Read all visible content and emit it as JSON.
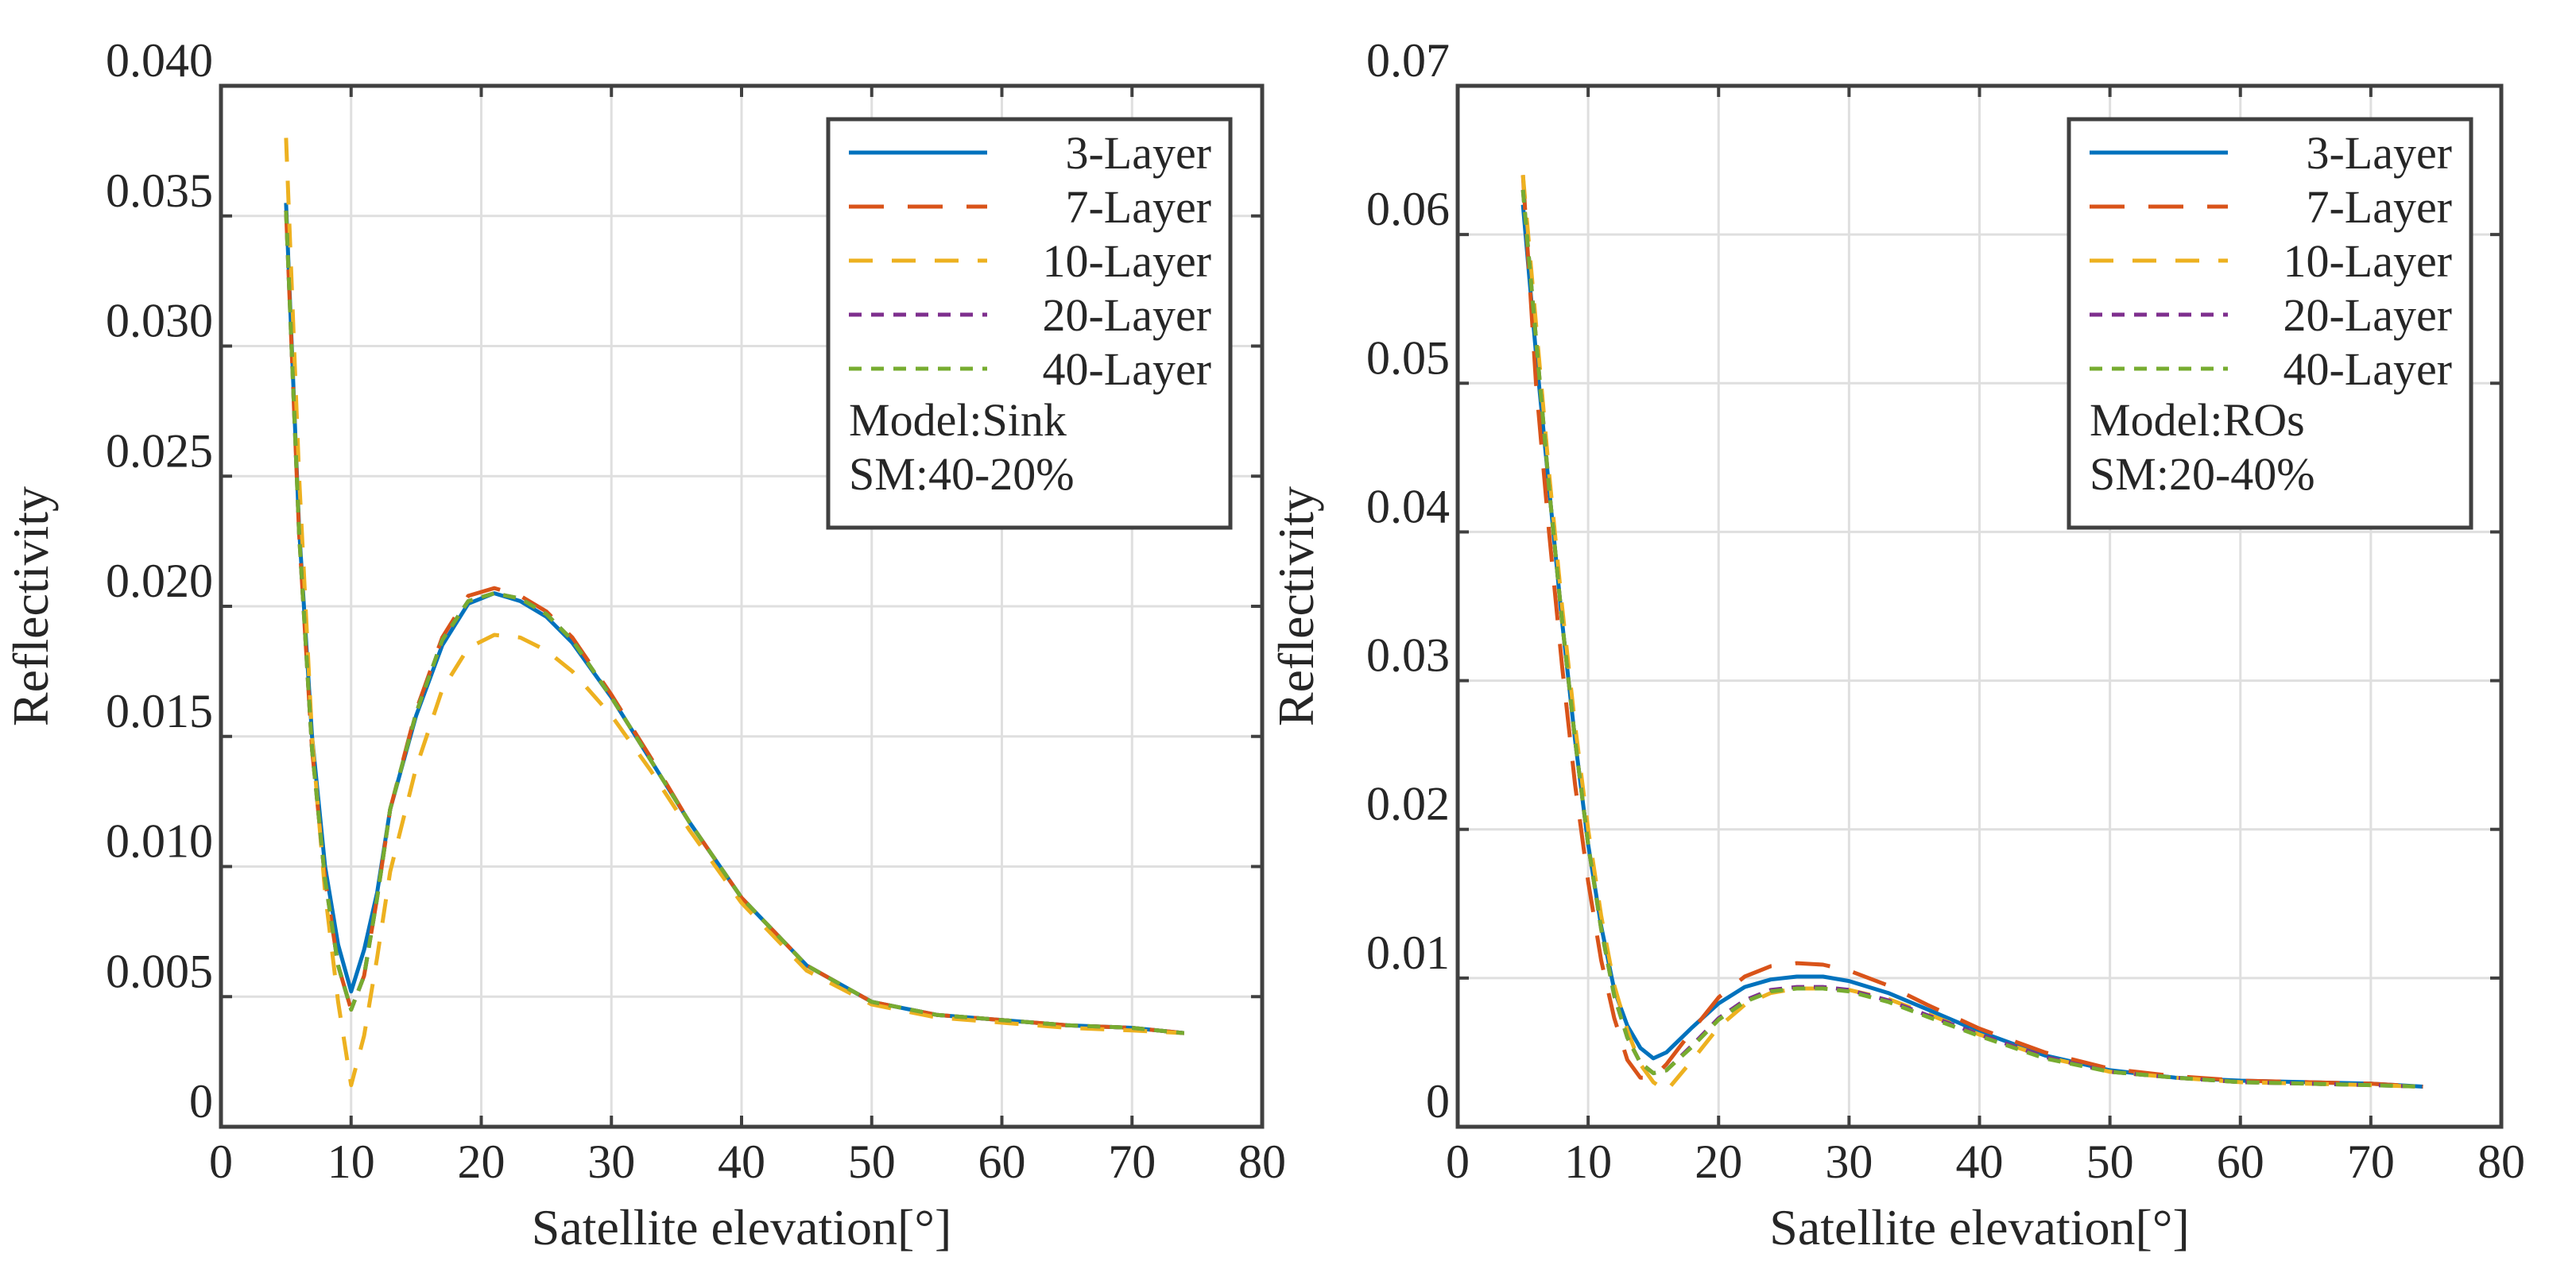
{
  "chart_data": [
    {
      "type": "line",
      "xlabel": "Satellite elevation[°]",
      "ylabel": "Reflectivity",
      "xlim": [
        0,
        80
      ],
      "ylim": [
        0,
        0.04
      ],
      "grid": true,
      "legend_position": "top-right",
      "xticks": [
        "0",
        "10",
        "20",
        "30",
        "40",
        "50",
        "60",
        "70",
        "80"
      ],
      "xtick_values": [
        0,
        10,
        20,
        30,
        40,
        50,
        60,
        70,
        80
      ],
      "yticks": [
        "0",
        "0.005",
        "0.010",
        "0.015",
        "0.020",
        "0.025",
        "0.030",
        "0.035",
        "0.040"
      ],
      "ytick_values": [
        0,
        0.005,
        0.01,
        0.015,
        0.02,
        0.025,
        0.03,
        0.035,
        0.04
      ],
      "annotations": [
        "Model:Sink",
        "SM:40-20%"
      ],
      "series": [
        {
          "name": "3-Layer",
          "color": "#0072BD",
          "dash": "solid",
          "x": [
            5,
            6,
            7,
            8,
            9,
            10,
            11,
            12,
            13,
            15,
            17,
            19,
            21,
            23,
            25,
            27,
            30,
            33,
            36,
            40,
            45,
            50,
            55,
            60,
            65,
            70,
            74
          ],
          "y": [
            0.0355,
            0.023,
            0.015,
            0.01,
            0.007,
            0.0052,
            0.0068,
            0.009,
            0.0122,
            0.0158,
            0.0185,
            0.0201,
            0.0205,
            0.0202,
            0.0196,
            0.0186,
            0.0165,
            0.0141,
            0.0117,
            0.0088,
            0.0062,
            0.0048,
            0.0043,
            0.0041,
            0.0039,
            0.0038,
            0.0036
          ]
        },
        {
          "name": "7-Layer",
          "color": "#D95319",
          "dash": "long",
          "x": [
            5,
            6,
            7,
            8,
            9,
            10,
            11,
            12,
            13,
            15,
            17,
            19,
            21,
            23,
            25,
            27,
            30,
            33,
            36,
            40,
            45,
            50,
            55,
            60,
            65,
            70,
            74
          ],
          "y": [
            0.0352,
            0.0228,
            0.0145,
            0.0095,
            0.0062,
            0.0045,
            0.0058,
            0.0088,
            0.0122,
            0.016,
            0.0188,
            0.0204,
            0.0207,
            0.0204,
            0.0198,
            0.0188,
            0.0166,
            0.0142,
            0.0117,
            0.0088,
            0.0062,
            0.0048,
            0.0043,
            0.0041,
            0.0039,
            0.0038,
            0.0036
          ]
        },
        {
          "name": "10-Layer",
          "color": "#EDB120",
          "dash": "medium",
          "x": [
            5,
            6,
            7,
            8,
            9,
            10,
            11,
            12,
            13,
            15,
            17,
            19,
            21,
            23,
            25,
            27,
            30,
            33,
            36,
            40,
            45,
            50,
            55,
            60,
            65,
            70,
            74
          ],
          "y": [
            0.038,
            0.025,
            0.015,
            0.009,
            0.0048,
            0.0016,
            0.0035,
            0.0065,
            0.0098,
            0.0138,
            0.0168,
            0.0184,
            0.0189,
            0.0188,
            0.0183,
            0.0175,
            0.0158,
            0.0137,
            0.0114,
            0.0086,
            0.006,
            0.0047,
            0.0042,
            0.004,
            0.0038,
            0.0037,
            0.0036
          ]
        },
        {
          "name": "20-Layer",
          "color": "#7E2F8E",
          "dash": "short",
          "x": [
            5,
            6,
            7,
            8,
            9,
            10,
            11,
            12,
            13,
            15,
            17,
            19,
            21,
            23,
            25,
            27,
            30,
            33,
            36,
            40,
            45,
            50,
            55,
            60,
            65,
            70,
            74
          ],
          "y": [
            0.0352,
            0.0228,
            0.0145,
            0.0095,
            0.0062,
            0.0045,
            0.0058,
            0.0088,
            0.0122,
            0.0159,
            0.0187,
            0.0202,
            0.0205,
            0.0203,
            0.0197,
            0.0187,
            0.0165,
            0.0141,
            0.0117,
            0.0088,
            0.0062,
            0.0048,
            0.0043,
            0.0041,
            0.0039,
            0.0038,
            0.0036
          ]
        },
        {
          "name": "40-Layer",
          "color": "#77AC30",
          "dash": "short",
          "x": [
            5,
            6,
            7,
            8,
            9,
            10,
            11,
            12,
            13,
            15,
            17,
            19,
            21,
            23,
            25,
            27,
            30,
            33,
            36,
            40,
            45,
            50,
            55,
            60,
            65,
            70,
            74
          ],
          "y": [
            0.0352,
            0.0228,
            0.0145,
            0.0095,
            0.0062,
            0.0045,
            0.0058,
            0.0088,
            0.0122,
            0.0159,
            0.0187,
            0.0202,
            0.0205,
            0.0203,
            0.0197,
            0.0187,
            0.0165,
            0.0141,
            0.0117,
            0.0088,
            0.0062,
            0.0048,
            0.0043,
            0.0041,
            0.0039,
            0.0038,
            0.0036
          ]
        }
      ]
    },
    {
      "type": "line",
      "xlabel": "Satellite elevation[°]",
      "ylabel": "Reflectivity",
      "xlim": [
        0,
        80
      ],
      "ylim": [
        0,
        0.07
      ],
      "grid": true,
      "legend_position": "top-right",
      "xticks": [
        "0",
        "10",
        "20",
        "30",
        "40",
        "50",
        "60",
        "70",
        "80"
      ],
      "xtick_values": [
        0,
        10,
        20,
        30,
        40,
        50,
        60,
        70,
        80
      ],
      "yticks": [
        "0",
        "0.01",
        "0.02",
        "0.03",
        "0.04",
        "0.05",
        "0.06",
        "0.07"
      ],
      "ytick_values": [
        0,
        0.01,
        0.02,
        0.03,
        0.04,
        0.05,
        0.06,
        0.07
      ],
      "annotations": [
        "Model:ROs",
        "SM:20-40%"
      ],
      "series": [
        {
          "name": "3-Layer",
          "color": "#0072BD",
          "dash": "solid",
          "x": [
            5,
            6,
            7,
            8,
            9,
            10,
            11,
            12,
            13,
            14,
            15,
            16,
            18,
            20,
            22,
            24,
            26,
            28,
            30,
            33,
            36,
            40,
            45,
            50,
            55,
            60,
            65,
            70,
            74
          ],
          "y": [
            0.062,
            0.052,
            0.043,
            0.034,
            0.026,
            0.019,
            0.0135,
            0.0092,
            0.0068,
            0.0053,
            0.0046,
            0.005,
            0.0067,
            0.0083,
            0.0094,
            0.0099,
            0.0101,
            0.0101,
            0.0098,
            0.009,
            0.0079,
            0.0064,
            0.0048,
            0.0038,
            0.0033,
            0.0031,
            0.003,
            0.0029,
            0.0027
          ]
        },
        {
          "name": "7-Layer",
          "color": "#D95319",
          "dash": "long",
          "x": [
            5,
            6,
            7,
            8,
            9,
            10,
            11,
            12,
            13,
            14,
            15,
            16,
            18,
            20,
            22,
            24,
            26,
            28,
            30,
            33,
            36,
            40,
            45,
            50,
            55,
            60,
            65,
            70,
            74
          ],
          "y": [
            0.064,
            0.05,
            0.04,
            0.031,
            0.023,
            0.0165,
            0.0112,
            0.0073,
            0.0045,
            0.0033,
            0.0033,
            0.0042,
            0.0065,
            0.0087,
            0.0101,
            0.0108,
            0.011,
            0.0109,
            0.0105,
            0.0095,
            0.0082,
            0.0066,
            0.005,
            0.0039,
            0.0034,
            0.0031,
            0.003,
            0.0029,
            0.0027
          ]
        },
        {
          "name": "10-Layer",
          "color": "#EDB120",
          "dash": "medium",
          "x": [
            5,
            6,
            7,
            8,
            9,
            10,
            11,
            12,
            13,
            14,
            15,
            16,
            18,
            20,
            22,
            24,
            26,
            28,
            30,
            33,
            36,
            40,
            45,
            50,
            55,
            60,
            65,
            70,
            74
          ],
          "y": [
            0.064,
            0.054,
            0.044,
            0.035,
            0.027,
            0.02,
            0.0142,
            0.0095,
            0.0065,
            0.0042,
            0.003,
            0.0024,
            0.0045,
            0.0067,
            0.0082,
            0.009,
            0.0093,
            0.0093,
            0.0092,
            0.0086,
            0.0076,
            0.0062,
            0.0047,
            0.0037,
            0.0033,
            0.003,
            0.0029,
            0.0028,
            0.0027
          ]
        },
        {
          "name": "20-Layer",
          "color": "#7E2F8E",
          "dash": "short",
          "x": [
            5,
            6,
            7,
            8,
            9,
            10,
            11,
            12,
            13,
            14,
            15,
            16,
            18,
            20,
            22,
            24,
            26,
            28,
            30,
            33,
            36,
            40,
            45,
            50,
            55,
            60,
            65,
            70,
            74
          ],
          "y": [
            0.063,
            0.053,
            0.043,
            0.034,
            0.026,
            0.019,
            0.0133,
            0.0088,
            0.006,
            0.0043,
            0.0036,
            0.0038,
            0.0055,
            0.0073,
            0.0085,
            0.0092,
            0.0094,
            0.0094,
            0.0092,
            0.0085,
            0.0075,
            0.0062,
            0.0047,
            0.0037,
            0.0033,
            0.003,
            0.0029,
            0.0028,
            0.0027
          ]
        },
        {
          "name": "40-Layer",
          "color": "#77AC30",
          "dash": "short",
          "x": [
            5,
            6,
            7,
            8,
            9,
            10,
            11,
            12,
            13,
            14,
            15,
            16,
            18,
            20,
            22,
            24,
            26,
            28,
            30,
            33,
            36,
            40,
            45,
            50,
            55,
            60,
            65,
            70,
            74
          ],
          "y": [
            0.063,
            0.053,
            0.043,
            0.034,
            0.026,
            0.019,
            0.0133,
            0.0088,
            0.006,
            0.0043,
            0.0036,
            0.0038,
            0.0054,
            0.0072,
            0.0084,
            0.0091,
            0.0093,
            0.0093,
            0.0091,
            0.0084,
            0.0074,
            0.0061,
            0.0046,
            0.0037,
            0.0033,
            0.003,
            0.0029,
            0.0028,
            0.0027
          ]
        }
      ]
    }
  ]
}
